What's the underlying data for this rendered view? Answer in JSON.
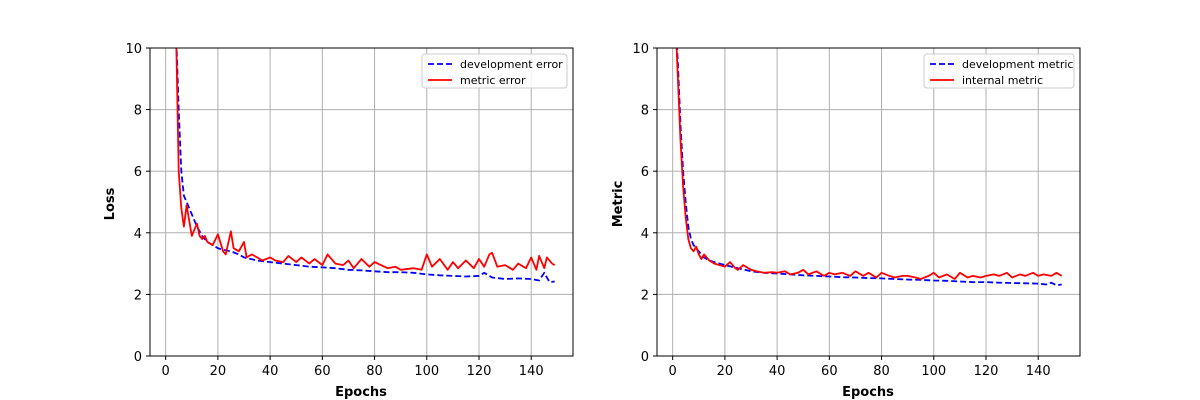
{
  "chart_data": [
    {
      "type": "line",
      "title": "",
      "xlabel": "Epochs",
      "ylabel": "Loss",
      "xlim": [
        -6,
        156
      ],
      "ylim": [
        0,
        10
      ],
      "xticks": [
        0,
        20,
        40,
        60,
        80,
        100,
        120,
        140
      ],
      "yticks": [
        0,
        2,
        4,
        6,
        8,
        10
      ],
      "grid": true,
      "legend_position": "top-right",
      "series": [
        {
          "name": "development error",
          "color": "#0000ff",
          "style": "dashed",
          "x": [
            4,
            5,
            6,
            7,
            8,
            10,
            12,
            14,
            16,
            18,
            20,
            22,
            25,
            28,
            30,
            35,
            40,
            45,
            50,
            55,
            60,
            65,
            70,
            75,
            80,
            85,
            90,
            95,
            100,
            105,
            110,
            115,
            120,
            122,
            125,
            130,
            135,
            140,
            143,
            145,
            147,
            149
          ],
          "y": [
            10.5,
            8.0,
            6.0,
            5.2,
            5.0,
            4.6,
            4.2,
            3.9,
            3.7,
            3.6,
            3.5,
            3.45,
            3.4,
            3.3,
            3.2,
            3.1,
            3.05,
            3.0,
            2.95,
            2.9,
            2.88,
            2.85,
            2.8,
            2.78,
            2.75,
            2.72,
            2.72,
            2.7,
            2.65,
            2.62,
            2.6,
            2.58,
            2.6,
            2.7,
            2.55,
            2.5,
            2.52,
            2.5,
            2.45,
            2.7,
            2.4,
            2.42
          ]
        },
        {
          "name": "metric error",
          "color": "#ff0000",
          "style": "solid",
          "x": [
            4,
            5,
            6,
            7,
            8,
            9,
            10,
            11,
            12,
            13,
            14,
            15,
            16,
            18,
            20,
            22,
            23,
            25,
            26,
            28,
            30,
            31,
            33,
            35,
            37,
            40,
            42,
            45,
            47,
            50,
            52,
            55,
            57,
            60,
            62,
            65,
            68,
            70,
            72,
            75,
            78,
            80,
            85,
            88,
            90,
            95,
            98,
            100,
            102,
            105,
            108,
            110,
            112,
            115,
            118,
            120,
            122,
            124,
            125,
            127,
            130,
            133,
            135,
            138,
            140,
            142,
            143,
            145,
            146,
            148,
            149
          ],
          "y": [
            10.5,
            6.0,
            4.8,
            4.2,
            4.9,
            4.4,
            3.9,
            4.1,
            4.3,
            3.9,
            3.8,
            3.9,
            3.7,
            3.6,
            3.95,
            3.4,
            3.3,
            4.05,
            3.5,
            3.4,
            3.7,
            3.2,
            3.3,
            3.2,
            3.1,
            3.2,
            3.1,
            3.05,
            3.25,
            3.05,
            3.2,
            3.0,
            3.15,
            2.95,
            3.3,
            3.0,
            2.95,
            3.1,
            2.85,
            3.15,
            2.9,
            3.05,
            2.85,
            2.9,
            2.8,
            2.85,
            2.8,
            3.3,
            2.9,
            3.15,
            2.8,
            3.05,
            2.85,
            3.1,
            2.85,
            3.15,
            2.9,
            3.3,
            3.35,
            2.9,
            2.95,
            2.8,
            3.0,
            2.85,
            3.2,
            2.8,
            3.25,
            2.85,
            3.2,
            3.0,
            2.95
          ]
        }
      ]
    },
    {
      "type": "line",
      "title": "",
      "xlabel": "Epochs",
      "ylabel": "Metric",
      "xlim": [
        -6,
        156
      ],
      "ylim": [
        0,
        10
      ],
      "xticks": [
        0,
        20,
        40,
        60,
        80,
        100,
        120,
        140
      ],
      "yticks": [
        0,
        2,
        4,
        6,
        8,
        10
      ],
      "grid": true,
      "legend_position": "top-right",
      "series": [
        {
          "name": "development metric",
          "color": "#0000ff",
          "style": "dashed",
          "x": [
            1,
            2,
            3,
            4,
            5,
            6,
            7,
            8,
            9,
            10,
            12,
            14,
            16,
            18,
            20,
            25,
            30,
            35,
            40,
            45,
            50,
            55,
            60,
            65,
            70,
            75,
            80,
            85,
            90,
            95,
            100,
            105,
            110,
            115,
            120,
            125,
            130,
            135,
            140,
            143,
            145,
            147,
            149
          ],
          "y": [
            11.0,
            9.5,
            7.5,
            6.0,
            5.0,
            4.2,
            3.8,
            3.6,
            3.5,
            3.4,
            3.2,
            3.1,
            3.05,
            3.0,
            2.95,
            2.85,
            2.75,
            2.7,
            2.68,
            2.65,
            2.62,
            2.6,
            2.58,
            2.56,
            2.55,
            2.53,
            2.52,
            2.5,
            2.48,
            2.47,
            2.45,
            2.44,
            2.42,
            2.4,
            2.4,
            2.38,
            2.37,
            2.36,
            2.35,
            2.32,
            2.38,
            2.3,
            2.32
          ]
        },
        {
          "name": "internal metric",
          "color": "#ff0000",
          "style": "solid",
          "x": [
            1,
            2,
            3,
            4,
            5,
            6,
            7,
            8,
            9,
            10,
            11,
            12,
            13,
            14,
            16,
            18,
            20,
            22,
            24,
            25,
            27,
            30,
            32,
            35,
            38,
            40,
            43,
            45,
            48,
            50,
            52,
            55,
            58,
            60,
            62,
            65,
            68,
            70,
            73,
            75,
            78,
            80,
            83,
            85,
            88,
            90,
            93,
            95,
            98,
            100,
            102,
            105,
            108,
            110,
            113,
            115,
            118,
            120,
            123,
            125,
            128,
            130,
            133,
            135,
            138,
            140,
            142,
            145,
            147,
            149
          ],
          "y": [
            11.0,
            9.0,
            7.0,
            5.5,
            4.5,
            3.8,
            3.5,
            3.4,
            3.55,
            3.3,
            3.15,
            3.3,
            3.2,
            3.1,
            3.0,
            2.95,
            2.9,
            3.05,
            2.85,
            2.8,
            2.95,
            2.8,
            2.75,
            2.7,
            2.72,
            2.7,
            2.75,
            2.65,
            2.7,
            2.8,
            2.65,
            2.75,
            2.6,
            2.7,
            2.65,
            2.7,
            2.6,
            2.75,
            2.6,
            2.7,
            2.55,
            2.7,
            2.6,
            2.55,
            2.6,
            2.6,
            2.55,
            2.5,
            2.6,
            2.7,
            2.55,
            2.65,
            2.5,
            2.7,
            2.55,
            2.6,
            2.55,
            2.6,
            2.65,
            2.6,
            2.7,
            2.55,
            2.65,
            2.6,
            2.7,
            2.6,
            2.65,
            2.6,
            2.7,
            2.6
          ]
        }
      ]
    }
  ]
}
